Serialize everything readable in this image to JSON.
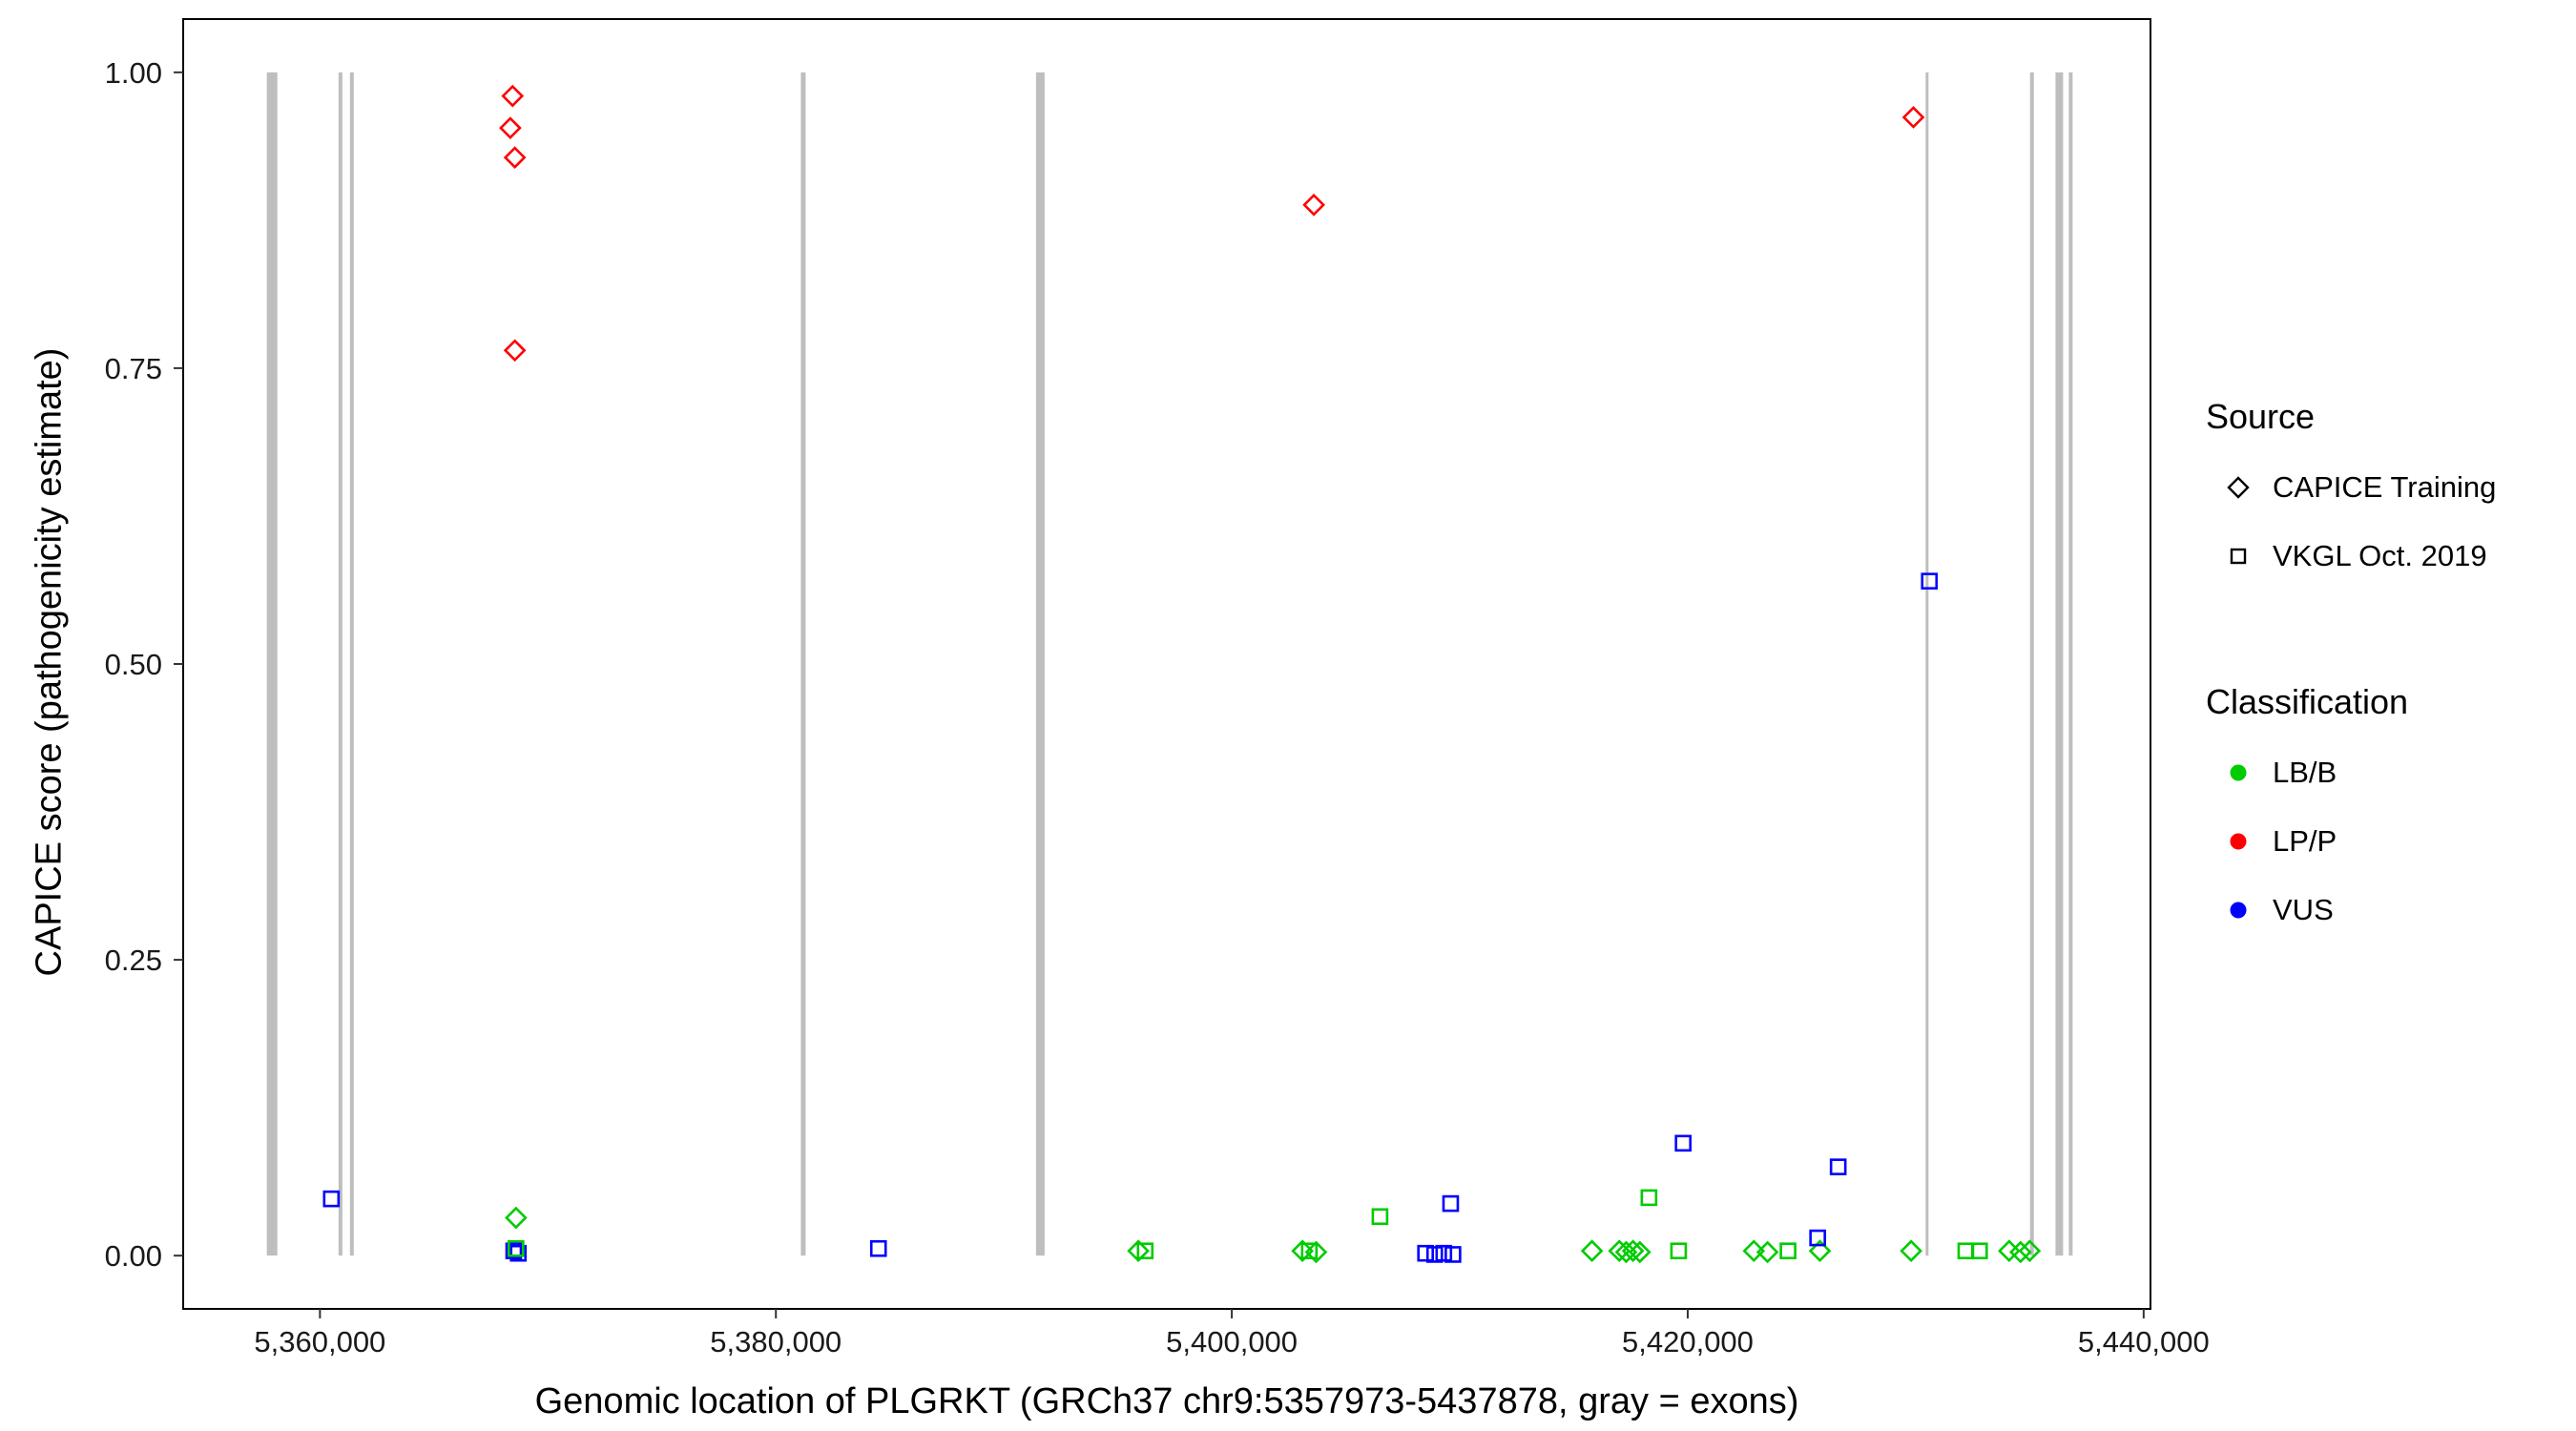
{
  "chart_data": {
    "type": "scatter",
    "title": "",
    "xlabel": "Genomic location of PLGRKT (GRCh37 chr9:5357973-5437878, gray = exons)",
    "ylabel": "CAPICE score (pathogenicity estimate)",
    "xlim": [
      5354000,
      5440300
    ],
    "ylim": [
      -0.045,
      1.045
    ],
    "grid": "off",
    "panel_border_color": "#000000",
    "x_ticks": [
      {
        "value": 5360000,
        "label": "5,360,000"
      },
      {
        "value": 5380000,
        "label": "5,380,000"
      },
      {
        "value": 5400000,
        "label": "5,400,000"
      },
      {
        "value": 5420000,
        "label": "5,420,000"
      },
      {
        "value": 5440000,
        "label": "5,440,000"
      }
    ],
    "y_ticks": [
      {
        "value": 0.0,
        "label": "0.00"
      },
      {
        "value": 0.25,
        "label": "0.25"
      },
      {
        "value": 0.5,
        "label": "0.50"
      },
      {
        "value": 0.75,
        "label": "0.75"
      },
      {
        "value": 1.0,
        "label": "1.00"
      }
    ],
    "exons": {
      "color": "#BEBEBE",
      "y_span": [
        0.0,
        1.0
      ],
      "regions": [
        {
          "x": 5357900,
          "w": 11
        },
        {
          "x": 5360900,
          "w": 4
        },
        {
          "x": 5361400,
          "w": 4
        },
        {
          "x": 5381200,
          "w": 5
        },
        {
          "x": 5391600,
          "w": 9
        },
        {
          "x": 5430500,
          "w": 3
        },
        {
          "x": 5435100,
          "w": 4
        },
        {
          "x": 5436300,
          "w": 8
        },
        {
          "x": 5436800,
          "w": 4
        }
      ]
    },
    "series": [
      {
        "id": "capice-training-lpp",
        "source": "CAPICE Training",
        "classification": "LP/P",
        "shape": "diamond",
        "color": "#FF0000",
        "points": [
          [
            5368450,
            0.98
          ],
          [
            5368350,
            0.953
          ],
          [
            5368550,
            0.928
          ],
          [
            5368550,
            0.765
          ],
          [
            5403600,
            0.888
          ],
          [
            5429900,
            0.962
          ]
        ]
      },
      {
        "id": "capice-training-lbb",
        "source": "CAPICE Training",
        "classification": "LB/B",
        "shape": "diamond",
        "color": "#00CC00",
        "points": [
          [
            5368600,
            0.032
          ],
          [
            5395900,
            0.004
          ],
          [
            5403100,
            0.004
          ],
          [
            5403700,
            0.003
          ],
          [
            5415800,
            0.004
          ],
          [
            5417000,
            0.004
          ],
          [
            5417300,
            0.003
          ],
          [
            5417600,
            0.004
          ],
          [
            5417900,
            0.003
          ],
          [
            5422900,
            0.004
          ],
          [
            5423500,
            0.003
          ],
          [
            5425800,
            0.004
          ],
          [
            5429800,
            0.004
          ],
          [
            5434100,
            0.004
          ],
          [
            5434600,
            0.003
          ],
          [
            5435000,
            0.004
          ]
        ]
      },
      {
        "id": "vkgl-vus",
        "source": "VKGL Oct. 2019",
        "classification": "VUS",
        "shape": "square",
        "color": "#0000FF",
        "points": [
          [
            5360500,
            0.048
          ],
          [
            5368500,
            0.004
          ],
          [
            5368700,
            0.002
          ],
          [
            5384500,
            0.006
          ],
          [
            5408500,
            0.002
          ],
          [
            5408900,
            0.001
          ],
          [
            5409300,
            0.002
          ],
          [
            5409700,
            0.001
          ],
          [
            5409600,
            0.044
          ],
          [
            5419800,
            0.095
          ],
          [
            5425700,
            0.015
          ],
          [
            5426600,
            0.075
          ],
          [
            5430600,
            0.57
          ]
        ]
      },
      {
        "id": "vkgl-lbb",
        "source": "VKGL Oct. 2019",
        "classification": "LB/B",
        "shape": "square",
        "color": "#00CC00",
        "points": [
          [
            5368600,
            0.006
          ],
          [
            5396200,
            0.004
          ],
          [
            5403400,
            0.004
          ],
          [
            5406500,
            0.033
          ],
          [
            5418300,
            0.049
          ],
          [
            5419600,
            0.004
          ],
          [
            5424400,
            0.004
          ],
          [
            5432200,
            0.004
          ],
          [
            5432800,
            0.004
          ]
        ]
      }
    ],
    "legend": {
      "source": {
        "title": "Source",
        "items": [
          {
            "label": "CAPICE Training",
            "shape": "diamond"
          },
          {
            "label": "VKGL Oct. 2019",
            "shape": "square"
          }
        ]
      },
      "classification": {
        "title": "Classification",
        "items": [
          {
            "label": "LB/B",
            "color": "#00CC00"
          },
          {
            "label": "LP/P",
            "color": "#FF0000"
          },
          {
            "label": "VUS",
            "color": "#0000FF"
          }
        ]
      }
    }
  }
}
